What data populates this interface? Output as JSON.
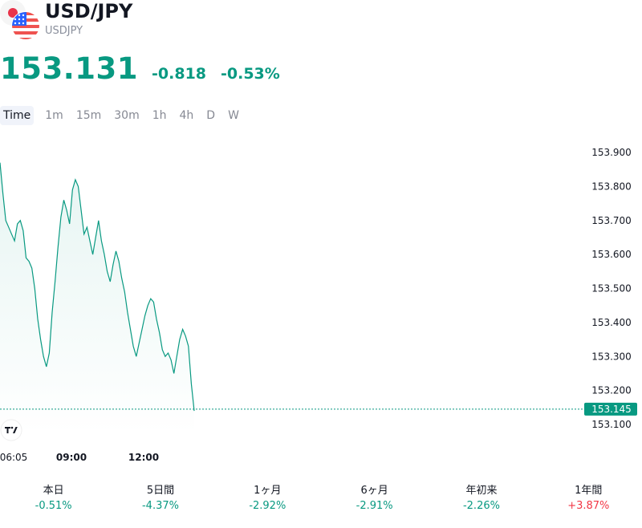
{
  "header": {
    "title": "USD/JPY",
    "symbol": "USDJPY",
    "price": "153.131",
    "change": "-0.818",
    "change_percent": "-0.53%"
  },
  "timeframes": [
    "Time",
    "1m",
    "15m",
    "30m",
    "1h",
    "4h",
    "D",
    "W"
  ],
  "active_timeframe": "Time",
  "colors": {
    "accent": "#089981",
    "negative_red": "#f23645"
  },
  "chart_data": {
    "type": "area",
    "x_ticks": [
      "06:05",
      "09:00",
      "12:00"
    ],
    "y_ticks": [
      "153.900",
      "153.800",
      "153.700",
      "153.600",
      "153.500",
      "153.400",
      "153.300",
      "153.200",
      "153.100"
    ],
    "ylim": [
      153.06,
      153.97
    ],
    "last_value_label": "153.145",
    "last_value": 153.145,
    "series": [
      {
        "values": [
          153.87,
          153.78,
          153.7,
          153.68,
          153.66,
          153.64,
          153.69,
          153.7,
          153.67,
          153.59,
          153.58,
          153.56,
          153.5,
          153.41,
          153.35,
          153.3,
          153.27,
          153.31,
          153.43,
          153.52,
          153.62,
          153.71,
          153.76,
          153.73,
          153.69,
          153.79,
          153.82,
          153.8,
          153.73,
          153.66,
          153.68,
          153.64,
          153.6,
          153.65,
          153.7,
          153.64,
          153.6,
          153.55,
          153.52,
          153.57,
          153.61,
          153.58,
          153.53,
          153.49,
          153.43,
          153.38,
          153.33,
          153.3,
          153.34,
          153.38,
          153.42,
          153.45,
          153.47,
          153.46,
          153.41,
          153.37,
          153.32,
          153.3,
          153.31,
          153.29,
          153.25,
          153.3,
          153.35,
          153.38,
          153.36,
          153.33,
          153.22,
          153.14
        ]
      }
    ]
  },
  "performance": [
    {
      "label": "本日",
      "value": "-0.51%",
      "positive": false
    },
    {
      "label": "5日間",
      "value": "-4.37%",
      "positive": false
    },
    {
      "label": "1ヶ月",
      "value": "-2.92%",
      "positive": false
    },
    {
      "label": "6ヶ月",
      "value": "-2.91%",
      "positive": false
    },
    {
      "label": "年初来",
      "value": "-2.26%",
      "positive": false
    },
    {
      "label": "1年間",
      "value": "+3.87%",
      "positive": true
    }
  ]
}
